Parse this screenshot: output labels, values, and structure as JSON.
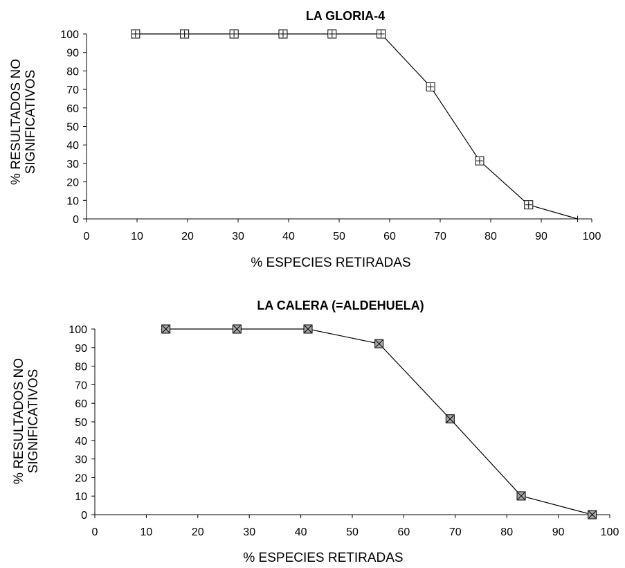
{
  "chart_data": [
    {
      "type": "line",
      "title": "LA GLORIA-4",
      "xlabel": "% ESPECIES RETIRADAS",
      "ylabel_lines": [
        "% RESULTADOS NO",
        "SIGNIFICATIVOS"
      ],
      "xlim": [
        0,
        100
      ],
      "ylim": [
        0,
        100
      ],
      "x_ticks": [
        "0",
        "10",
        "20",
        "30",
        "40",
        "50",
        "60",
        "70",
        "80",
        "90",
        "100"
      ],
      "y_ticks": [
        "0",
        "10",
        "20",
        "30",
        "40",
        "50",
        "60",
        "70",
        "80",
        "90",
        "100"
      ],
      "grid": false,
      "marker": "square-plus",
      "marker_fill": "#ffffff",
      "series": [
        {
          "x": [
            9.7,
            19.4,
            29.2,
            38.9,
            48.6,
            58.3,
            68.1,
            77.8,
            87.5,
            97.2
          ],
          "y": [
            100,
            100,
            100,
            100,
            100,
            100,
            71.4,
            31.4,
            7.6,
            0
          ]
        }
      ]
    },
    {
      "type": "line",
      "title": "LA CALERA (=ALDEHUELA)",
      "xlabel": "% ESPECIES RETIRADAS",
      "ylabel_lines": [
        "% RESULTADOS NO",
        "SIGNIFICATIVOS"
      ],
      "xlim": [
        0,
        100
      ],
      "ylim": [
        0,
        100
      ],
      "x_ticks": [
        "0",
        "10",
        "20",
        "30",
        "40",
        "50",
        "60",
        "70",
        "80",
        "90",
        "100"
      ],
      "y_ticks": [
        "0",
        "10",
        "20",
        "30",
        "40",
        "50",
        "60",
        "70",
        "80",
        "90",
        "100"
      ],
      "grid": false,
      "marker": "square-x",
      "marker_fill": "#a6a6a6",
      "series": [
        {
          "x": [
            13.8,
            27.6,
            41.4,
            55.2,
            69.0,
            82.8,
            96.6
          ],
          "y": [
            100,
            100,
            100,
            92.1,
            51.6,
            10.1,
            0
          ]
        }
      ]
    }
  ]
}
